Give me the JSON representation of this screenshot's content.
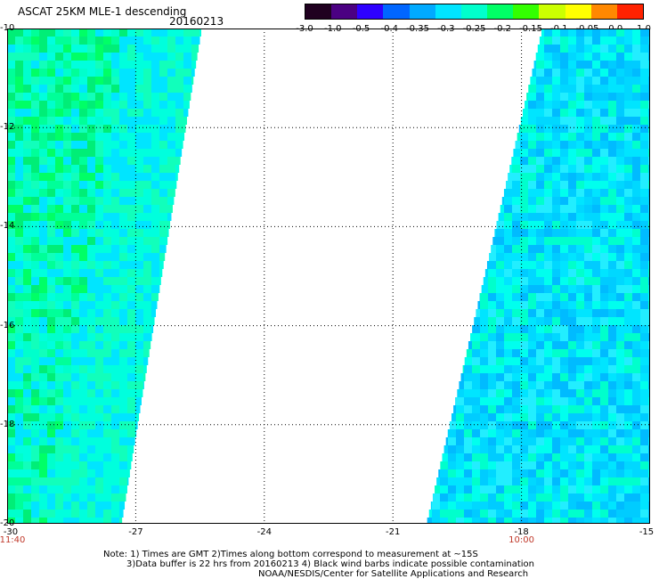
{
  "header": {
    "title": "ASCAT 25KM MLE-1 descending",
    "date": "20160213"
  },
  "colorbar": {
    "labels": [
      "-3.0",
      "-1.0",
      "-0.5",
      "-0.4",
      "-0.35",
      "-0.3",
      "-0.25",
      "-0.2",
      "-0.15",
      "-0.1",
      "-0.05",
      "0.0",
      "1.0"
    ],
    "colors": [
      "#200020",
      "#4b0082",
      "#2e00ff",
      "#0066ff",
      "#00aaff",
      "#00e5ff",
      "#00ffcc",
      "#00ff66",
      "#33ff00",
      "#ccff00",
      "#ffff00",
      "#ff8800",
      "#ff2200"
    ]
  },
  "map": {
    "lat_labels": [
      "-10",
      "-12",
      "-14",
      "-16",
      "-18",
      "-20"
    ],
    "lon_labels": [
      "-30",
      "-27",
      "-24",
      "-21",
      "-18",
      "-15"
    ],
    "lat_range": [
      -20,
      -10
    ],
    "lon_range": [
      -30,
      -15
    ],
    "time_labels": [
      {
        "text": "11:40",
        "lon": -30
      },
      {
        "text": "10:00",
        "lon": -18
      }
    ],
    "left_swath_colors": [
      "#00ffcc",
      "#00ff99",
      "#00ff66",
      "#00ee77",
      "#00ffdd",
      "#00e5ff",
      "#11ffbb"
    ],
    "right_swath_colors": [
      "#00e5ff",
      "#00ccff",
      "#00ffee",
      "#00bbff",
      "#00d8ff",
      "#00ffcc",
      "#22eeff"
    ]
  },
  "footer": {
    "note_line1": "Note: 1) Times are GMT 2)Times along bottom correspond to measurement at ~15S",
    "note_line2": "3)Data buffer is 22 hrs from 20160213 4) Black wind barbs indicate possible contamination",
    "note_line3": "NOAA/NESDIS/Center for Satellite Applications and Research"
  }
}
